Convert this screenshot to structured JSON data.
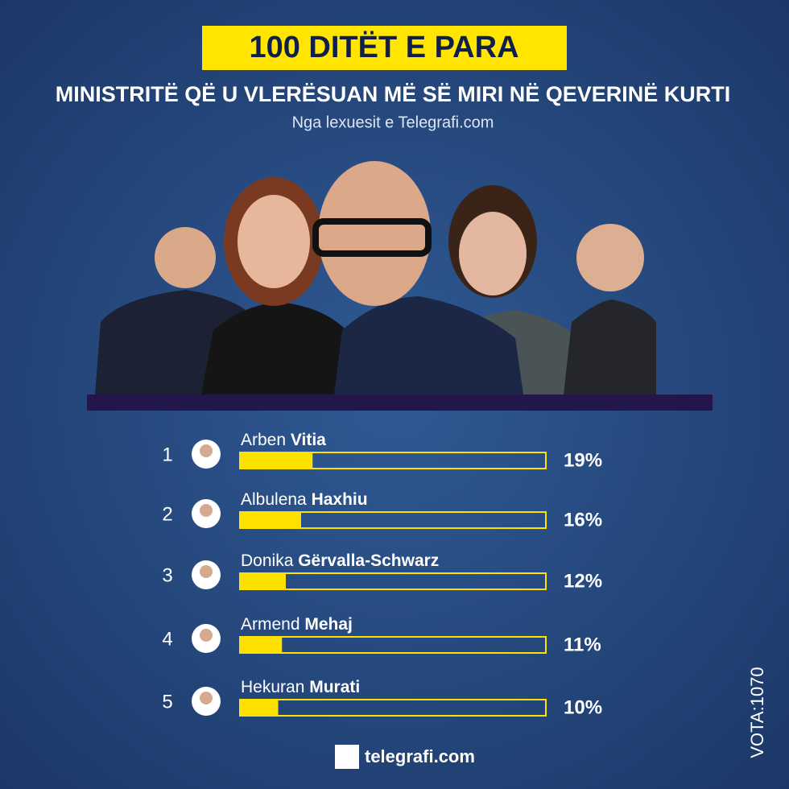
{
  "chart_data": {
    "type": "bar",
    "orientation": "horizontal",
    "title": "100 DITËT E PARA",
    "subtitle": "MINISTRITË QË U VLERËSUAN MË SË MIRI NË QEVERINË KURTI",
    "source": "Nga lexuesit e Telegrafi.com",
    "ranks": [
      1,
      2,
      3,
      4,
      5
    ],
    "first_names": [
      "Arben",
      "Albulena",
      "Donika",
      "Armend",
      "Hekuran"
    ],
    "last_names": [
      "Vitia",
      "Haxhiu",
      "Gërvalla-Schwarz",
      "Mehaj",
      "Murati"
    ],
    "values": [
      19,
      16,
      12,
      11,
      10
    ],
    "value_labels": [
      "19%",
      "16%",
      "12%",
      "11%",
      "10%"
    ],
    "color": "#ffe100",
    "xlim": [
      0,
      80
    ],
    "footer": "telegrafi.com",
    "votes": "VOTA:1070"
  }
}
